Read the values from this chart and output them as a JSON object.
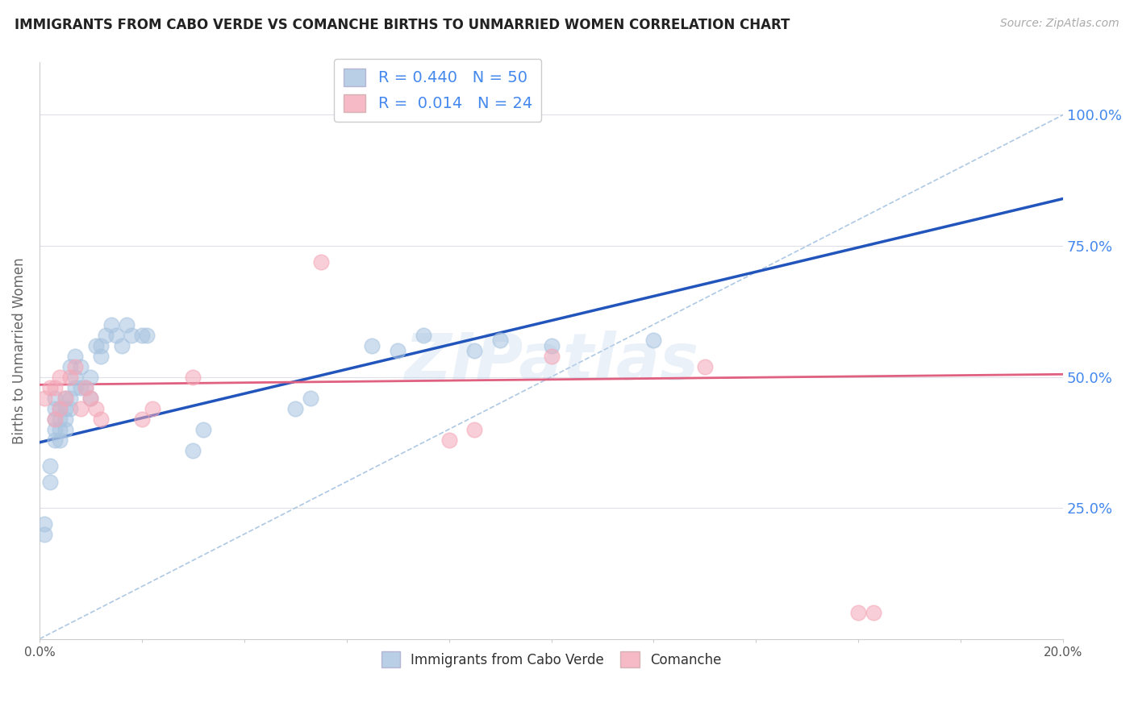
{
  "title": "IMMIGRANTS FROM CABO VERDE VS COMANCHE BIRTHS TO UNMARRIED WOMEN CORRELATION CHART",
  "source": "Source: ZipAtlas.com",
  "ylabel": "Births to Unmarried Women",
  "legend_label_1": "Immigrants from Cabo Verde",
  "legend_label_2": "Comanche",
  "R1": 0.44,
  "N1": 50,
  "R2": 0.014,
  "N2": 24,
  "color_blue": "#a8c4e0",
  "color_pink": "#f4a8b8",
  "color_blue_line": "#2255bb",
  "color_pink_line": "#e06080",
  "color_dashed": "#99bbdd",
  "title_color": "#222222",
  "right_axis_color": "#4488ee",
  "xmin": 0.0,
  "xmax": 0.2,
  "ymin": 0.0,
  "ymax": 1.1,
  "yticks": [
    0.25,
    0.5,
    0.75,
    1.0
  ],
  "ytick_labels": [
    "25.0%",
    "50.0%",
    "75.0%",
    "100.0%"
  ],
  "xticks": [
    0.0,
    0.02,
    0.04,
    0.06,
    0.08,
    0.1,
    0.12,
    0.14,
    0.16,
    0.18,
    0.2
  ],
  "xtick_labels_show": [
    "0.0%",
    "",
    "",
    "",
    "",
    "",
    "",
    "",
    "",
    "",
    "20.0%"
  ],
  "blue_x": [
    0.001,
    0.001,
    0.002,
    0.002,
    0.003,
    0.003,
    0.003,
    0.003,
    0.003,
    0.004,
    0.004,
    0.004,
    0.004,
    0.005,
    0.005,
    0.005,
    0.005,
    0.006,
    0.006,
    0.006,
    0.007,
    0.007,
    0.007,
    0.008,
    0.008,
    0.009,
    0.01,
    0.01,
    0.011,
    0.012,
    0.012,
    0.013,
    0.014,
    0.015,
    0.016,
    0.017,
    0.018,
    0.02,
    0.021,
    0.03,
    0.032,
    0.05,
    0.053,
    0.065,
    0.07,
    0.075,
    0.085,
    0.09,
    0.1,
    0.12
  ],
  "blue_y": [
    0.2,
    0.22,
    0.3,
    0.33,
    0.38,
    0.4,
    0.42,
    0.44,
    0.46,
    0.38,
    0.4,
    0.42,
    0.44,
    0.4,
    0.42,
    0.44,
    0.46,
    0.44,
    0.46,
    0.52,
    0.48,
    0.5,
    0.54,
    0.48,
    0.52,
    0.48,
    0.46,
    0.5,
    0.56,
    0.54,
    0.56,
    0.58,
    0.6,
    0.58,
    0.56,
    0.6,
    0.58,
    0.58,
    0.58,
    0.36,
    0.4,
    0.44,
    0.46,
    0.56,
    0.55,
    0.58,
    0.55,
    0.57,
    0.56,
    0.57
  ],
  "pink_x": [
    0.001,
    0.002,
    0.003,
    0.003,
    0.004,
    0.004,
    0.005,
    0.006,
    0.007,
    0.008,
    0.009,
    0.01,
    0.011,
    0.012,
    0.02,
    0.022,
    0.03,
    0.055,
    0.08,
    0.085,
    0.1,
    0.13,
    0.16,
    0.163
  ],
  "pink_y": [
    0.46,
    0.48,
    0.42,
    0.48,
    0.5,
    0.44,
    0.46,
    0.5,
    0.52,
    0.44,
    0.48,
    0.46,
    0.44,
    0.42,
    0.42,
    0.44,
    0.5,
    0.72,
    0.38,
    0.4,
    0.54,
    0.52,
    0.05,
    0.05
  ],
  "watermark": "ZIPatlas",
  "background_color": "#ffffff",
  "grid_color": "#e0e0e8"
}
